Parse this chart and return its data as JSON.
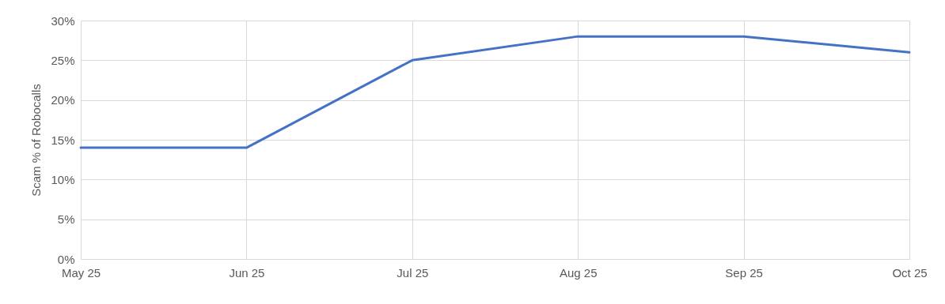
{
  "chart_data": {
    "type": "line",
    "ylabel": "Scam % of Robocalls",
    "categories": [
      "May 25",
      "Jun 25",
      "Jul 25",
      "Aug 25",
      "Sep 25",
      "Oct 25"
    ],
    "series": [
      {
        "color": "#4472c4",
        "values": [
          14,
          14,
          25,
          28,
          28,
          26
        ]
      }
    ],
    "ylim": [
      0,
      30
    ],
    "yticks": [
      {
        "value": 0,
        "label": "0%"
      },
      {
        "value": 5,
        "label": "5%"
      },
      {
        "value": 10,
        "label": "10%"
      },
      {
        "value": 15,
        "label": "15%"
      },
      {
        "value": 20,
        "label": "20%"
      },
      {
        "value": 25,
        "label": "25%"
      },
      {
        "value": 30,
        "label": "30%"
      }
    ],
    "grid": true
  }
}
